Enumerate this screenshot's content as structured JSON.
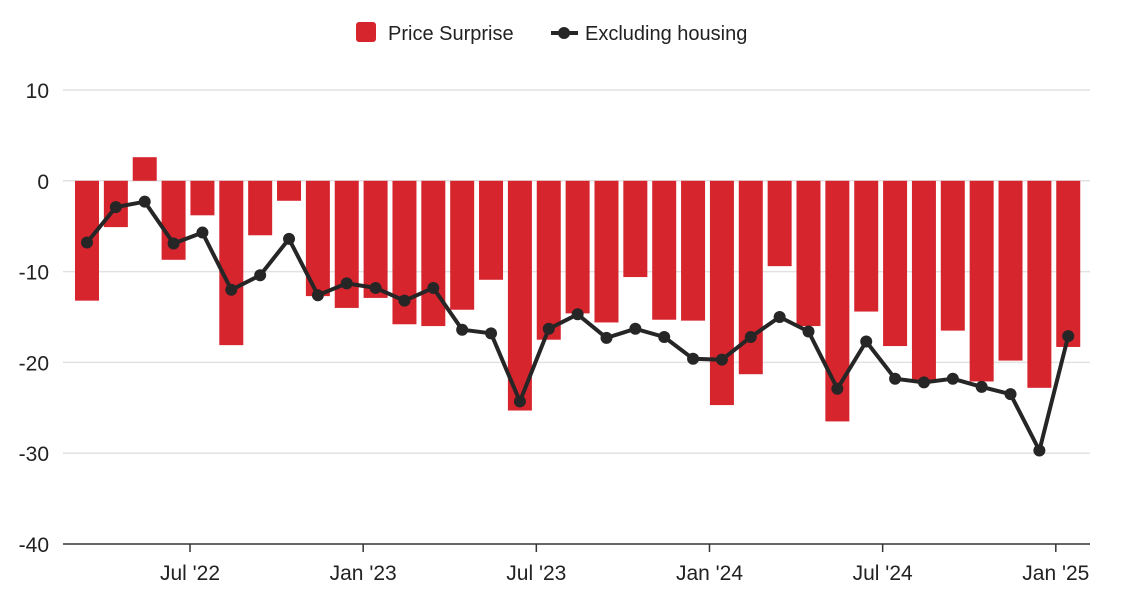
{
  "chart_data": {
    "type": "bar",
    "title": "",
    "xlabel": "",
    "ylabel": "",
    "ylim": [
      -40,
      10
    ],
    "yticks": [
      10,
      0,
      -10,
      -20,
      -30,
      -40
    ],
    "grid": true,
    "legend_position": "top-center",
    "x": [
      "2022-03",
      "2022-04",
      "2022-05",
      "2022-06",
      "2022-07",
      "2022-08",
      "2022-09",
      "2022-10",
      "2022-11",
      "2022-12",
      "2023-01",
      "2023-02",
      "2023-03",
      "2023-04",
      "2023-05",
      "2023-06",
      "2023-07",
      "2023-08",
      "2023-09",
      "2023-10",
      "2023-11",
      "2023-12",
      "2024-01",
      "2024-02",
      "2024-03",
      "2024-04",
      "2024-05",
      "2024-06",
      "2024-07",
      "2024-08",
      "2024-09",
      "2024-10",
      "2024-11",
      "2024-12",
      "2025-01",
      "2025-02"
    ],
    "xticks": [
      {
        "label": "Jul '22",
        "index": 4
      },
      {
        "label": "Jan '23",
        "index": 10
      },
      {
        "label": "Jul '23",
        "index": 16
      },
      {
        "label": "Jan '24",
        "index": 22
      },
      {
        "label": "Jul '24",
        "index": 28
      },
      {
        "label": "Jan '25",
        "index": 34
      }
    ],
    "series": [
      {
        "name": "Price Surprise",
        "type": "bar",
        "color": "#d7252e",
        "values": [
          -13.2,
          -5.1,
          2.6,
          -8.7,
          -3.8,
          -18.1,
          -6.0,
          -2.2,
          -12.7,
          -14.0,
          -12.9,
          -15.8,
          -16.0,
          -14.2,
          -10.9,
          -25.3,
          -17.5,
          -14.6,
          -15.6,
          -10.6,
          -15.3,
          -15.4,
          -24.7,
          -21.3,
          -9.4,
          -16.0,
          -26.5,
          -14.4,
          -18.2,
          -22.0,
          -16.5,
          -22.1,
          -19.8,
          -22.8,
          -18.3,
          null
        ],
        "note_last": "bar for final month"
      },
      {
        "name": "Excluding housing",
        "type": "line",
        "color": "#262626",
        "values": [
          -6.8,
          -2.9,
          -2.3,
          -6.9,
          -5.7,
          -12.0,
          -10.4,
          -6.4,
          -12.6,
          -11.3,
          -11.8,
          -13.2,
          -11.8,
          -16.4,
          -16.8,
          -24.3,
          -16.3,
          -14.7,
          -17.3,
          -16.3,
          -17.2,
          -19.6,
          -19.7,
          -17.2,
          -15.0,
          -16.6,
          -22.9,
          -17.7,
          -21.8,
          -22.2,
          -21.8,
          -22.7,
          -23.5,
          -29.7,
          -17.1,
          null
        ]
      }
    ]
  }
}
